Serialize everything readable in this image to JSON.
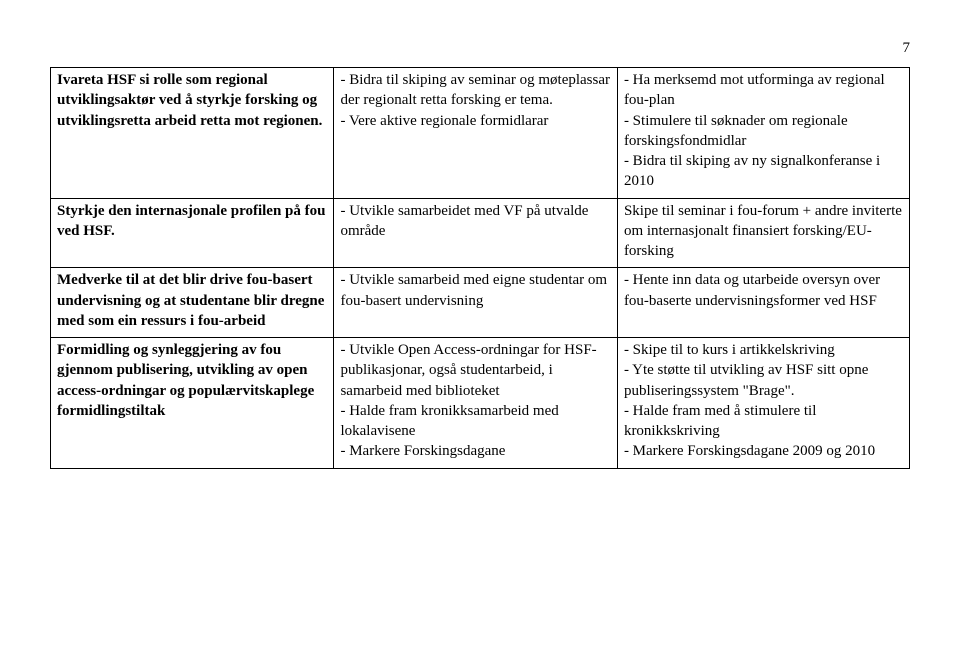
{
  "page_number": "7",
  "rows": [
    {
      "col1_html": "<span class=\"bold\">Ivareta HSF si rolle som regional utviklingsaktør ved å styrkje forsking og utviklingsretta arbeid retta mot regionen.</span>",
      "col2_html": "- Bidra til skiping av seminar og møteplassar der regionalt retta forsking er tema.<br>- Vere aktive regionale formidlarar",
      "col3_html": "- Ha merksemd mot utforminga av regional fou-plan<br>- Stimulere til søknader om regionale forskingsfondmidlar<br>- Bidra til skiping av ny signalkonferanse i 2010"
    },
    {
      "col1_html": "<span class=\"bold\">Styrkje den internasjonale profilen på fou ved HSF.</span>",
      "col2_html": "- Utvikle samarbeidet med VF på utvalde område",
      "col3_html": "Skipe til seminar i fou-forum + andre inviterte om internasjonalt finansiert forsking/EU-forsking"
    },
    {
      "col1_html": "<span class=\"bold\">Medverke til at det blir drive fou-basert undervisning og at studentane blir dregne med som ein ressurs i fou-arbeid</span>",
      "col2_html": "- Utvikle samarbeid med eigne studentar om fou-basert undervisning",
      "col3_html": "- Hente inn data og utarbeide oversyn over fou-baserte undervisningsformer ved HSF"
    },
    {
      "col1_html": "<span class=\"bold\">Formidling og synleggjering av fou gjennom publisering, utvikling av open access-ordningar og populærvitskaplege formidlingstiltak</span>",
      "col2_html": "- Utvikle Open Access-ordningar for HSF-publikasjonar, også studentarbeid, i samarbeid med biblioteket<br>- Halde fram kronikksamarbeid med lokalavisene<br>- Markere Forskingsdagane",
      "col3_html": "- Skipe til to kurs i artikkelskriving<br>- Yte støtte til utvikling av HSF sitt opne publiseringssystem \"Brage\".<br>- Halde fram med å stimulere til kronikkskriving<br>- Markere Forskingsdagane 2009 og 2010"
    }
  ]
}
